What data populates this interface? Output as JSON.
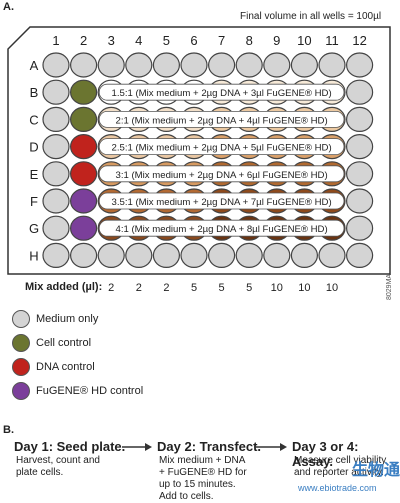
{
  "section_a_label": "A.",
  "section_b_label": "B.",
  "final_volume": "Final volume in all wells = 100µl",
  "columns": [
    "1",
    "2",
    "3",
    "4",
    "5",
    "6",
    "7",
    "8",
    "9",
    "10",
    "11",
    "12"
  ],
  "rows": [
    "A",
    "B",
    "C",
    "D",
    "E",
    "F",
    "G",
    "H"
  ],
  "ratio_labels": [
    {
      "row": "B",
      "text": "1.5:1 (Mix medium + 2µg DNA + 3µl FuGENE® HD)"
    },
    {
      "row": "C",
      "text": "2:1 (Mix medium + 2µg DNA + 4µl FuGENE® HD)"
    },
    {
      "row": "D",
      "text": "2.5:1 (Mix medium + 2µg DNA + 5µl FuGENE® HD)"
    },
    {
      "row": "E",
      "text": "3:1 (Mix medium + 2µg DNA + 6µl FuGENE® HD)"
    },
    {
      "row": "F",
      "text": "3.5:1 (Mix medium + 2µg DNA + 7µl FuGENE® HD)"
    },
    {
      "row": "G",
      "text": "4:1 (Mix medium + 2µg DNA + 8µl FuGENE® HD)"
    }
  ],
  "mix_added_label": "Mix added (µl):",
  "mix_added_values": [
    "2",
    "2",
    "2",
    "5",
    "5",
    "5",
    "10",
    "10",
    "10"
  ],
  "legend": [
    {
      "label": "Medium only",
      "color": "#d4d4d4"
    },
    {
      "label": "Cell control",
      "color": "#6b7530"
    },
    {
      "label": "DNA control",
      "color": "#c0231d"
    },
    {
      "label": "FuGENE® HD control",
      "color": "#7b3f9a"
    }
  ],
  "colors": {
    "medium": "#d4d4d4",
    "cell": "#6b7530",
    "dna": "#c0231d",
    "fugene": "#7b3f9a",
    "row_gradient_start": [
      "#ffffff",
      "#f2dfc8",
      "#e9c7a3",
      "#d69a61",
      "#b36a33",
      "#8a4a1f"
    ],
    "row_gradient_end": [
      "#f7ead8",
      "#ecc9a1",
      "#d9a06a",
      "#b06930",
      "#8e4a1c",
      "#6a3412"
    ]
  },
  "steps": [
    {
      "title": "Day 1: Seed plate.",
      "body": [
        "Harvest, count and",
        "plate cells."
      ]
    },
    {
      "title": "Day 2: Transfect.",
      "body": [
        "Mix medium + DNA",
        "+ FuGENE® HD for",
        "up to 15 minutes.",
        "Add to cells."
      ]
    },
    {
      "title": "Day 3 or 4: Assay.",
      "body": [
        "Measure cell viability",
        "and reporter activity."
      ]
    }
  ],
  "code": "8029MA",
  "watermark": "www.ebiotrade.com",
  "watermark_logo": "生物通"
}
